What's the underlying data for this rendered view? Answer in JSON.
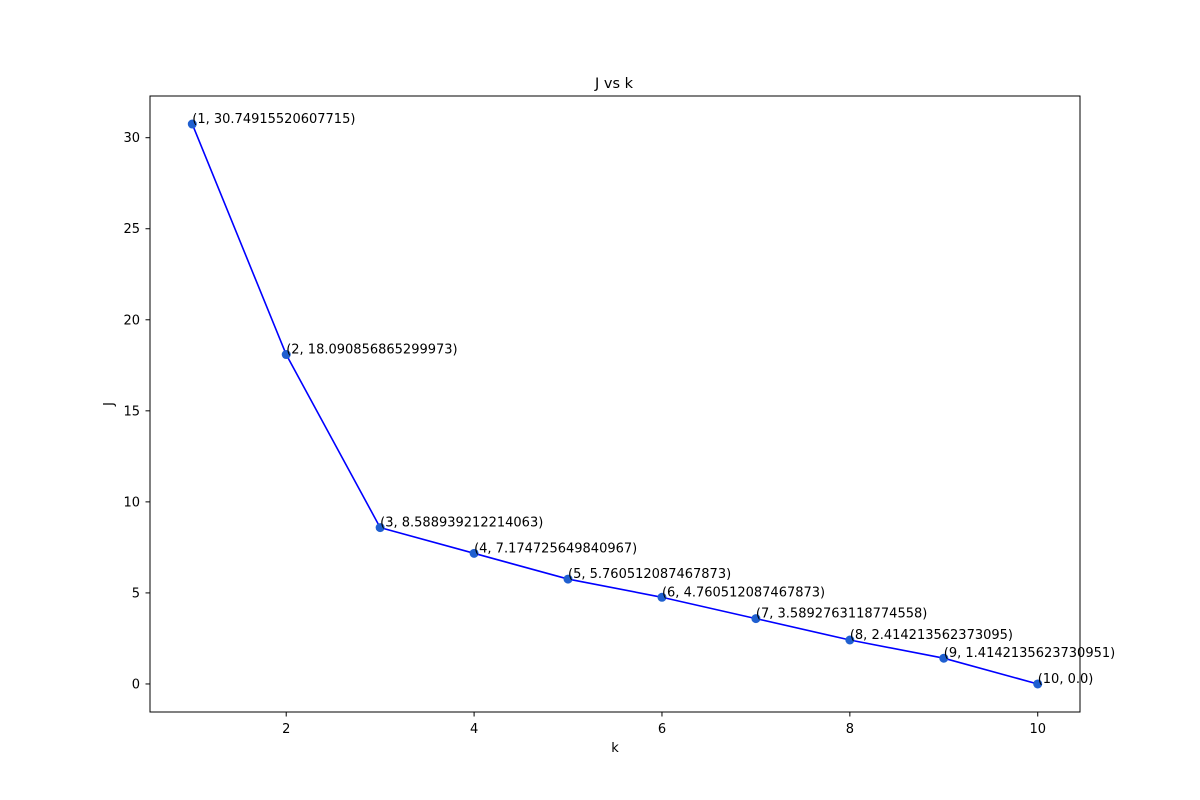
{
  "chart_data": {
    "type": "line",
    "title": "J vs k",
    "xlabel": "k",
    "ylabel": "J",
    "xlim": [
      0.55,
      10.45
    ],
    "ylim": [
      -1.54,
      32.29
    ],
    "xticks": [
      2,
      4,
      6,
      8,
      10
    ],
    "yticks": [
      0,
      5,
      10,
      15,
      20,
      25,
      30
    ],
    "grid": false,
    "colors": {
      "line": "#0000ff",
      "marker": "#1f5fd0"
    },
    "x": [
      1,
      2,
      3,
      4,
      5,
      6,
      7,
      8,
      9,
      10
    ],
    "y": [
      30.74915520607715,
      18.090856865299973,
      8.588939212214063,
      7.174725649840967,
      5.760512087467873,
      4.760512087467873,
      3.5892763118774558,
      2.414213562373095,
      1.4142135623730951,
      0.0
    ],
    "point_labels": [
      "(1, 30.74915520607715)",
      "(2, 18.090856865299973)",
      "(3, 8.588939212214063)",
      "(4, 7.174725649840967)",
      "(5, 5.760512087467873)",
      "(6, 4.760512087467873)",
      "(7, 3.5892763118774558)",
      "(8, 2.414213562373095)",
      "(9, 1.4142135623730951)",
      "(10, 0.0)"
    ]
  }
}
